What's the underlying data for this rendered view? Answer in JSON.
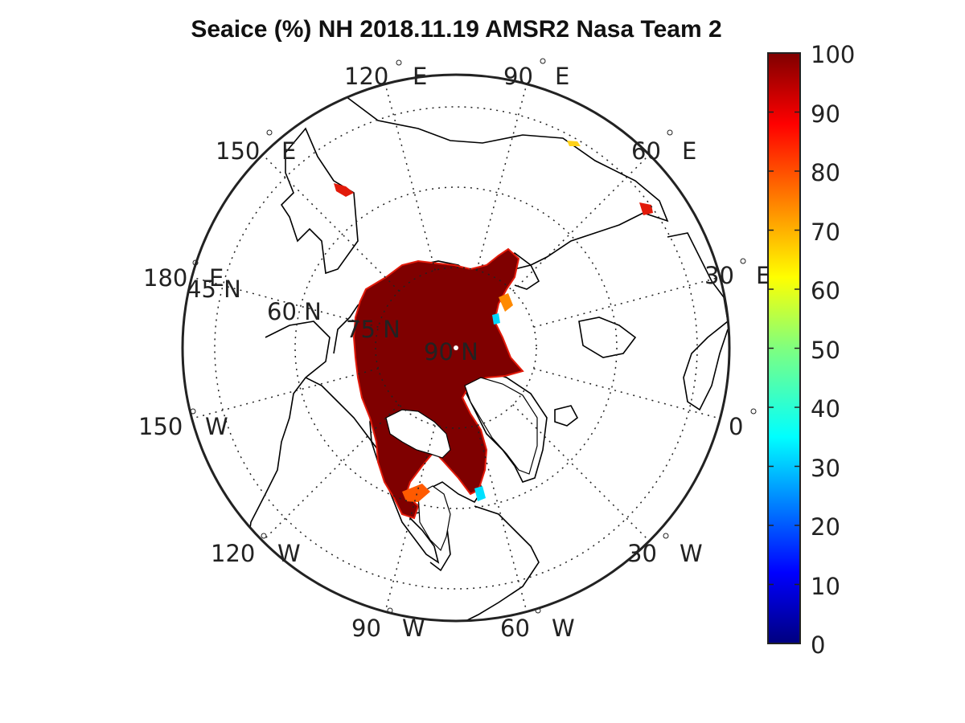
{
  "title": "Seaice (%) NH 2018.11.19 AMSR2 Nasa Team 2",
  "map": {
    "projection": "north-polar-stereographic",
    "center_label": "90 N",
    "latitude_circles": [
      "45 N",
      "60 N",
      "75 N",
      "90 N"
    ],
    "meridian_labels": [
      {
        "text": "120",
        "dir": "E"
      },
      {
        "text": "90",
        "dir": "E"
      },
      {
        "text": "60",
        "dir": "E"
      },
      {
        "text": "30",
        "dir": "E"
      },
      {
        "text": "0",
        "dir": ""
      },
      {
        "text": "30",
        "dir": "W"
      },
      {
        "text": "60",
        "dir": "W"
      },
      {
        "text": "90",
        "dir": "W"
      },
      {
        "text": "120",
        "dir": "W"
      },
      {
        "text": "150",
        "dir": "W"
      },
      {
        "text": "180",
        "dir": "E"
      },
      {
        "text": "150",
        "dir": "E"
      }
    ],
    "grid": "dotted",
    "ice_color": "#7f0000",
    "edge_color": "#e21a0a",
    "coast_color": "#000000"
  },
  "colorbar": {
    "ticks": [
      "100",
      "90",
      "80",
      "70",
      "60",
      "50",
      "40",
      "30",
      "20",
      "10",
      "0"
    ],
    "colormap": "jet",
    "range": [
      0,
      100
    ],
    "placement": "right"
  }
}
